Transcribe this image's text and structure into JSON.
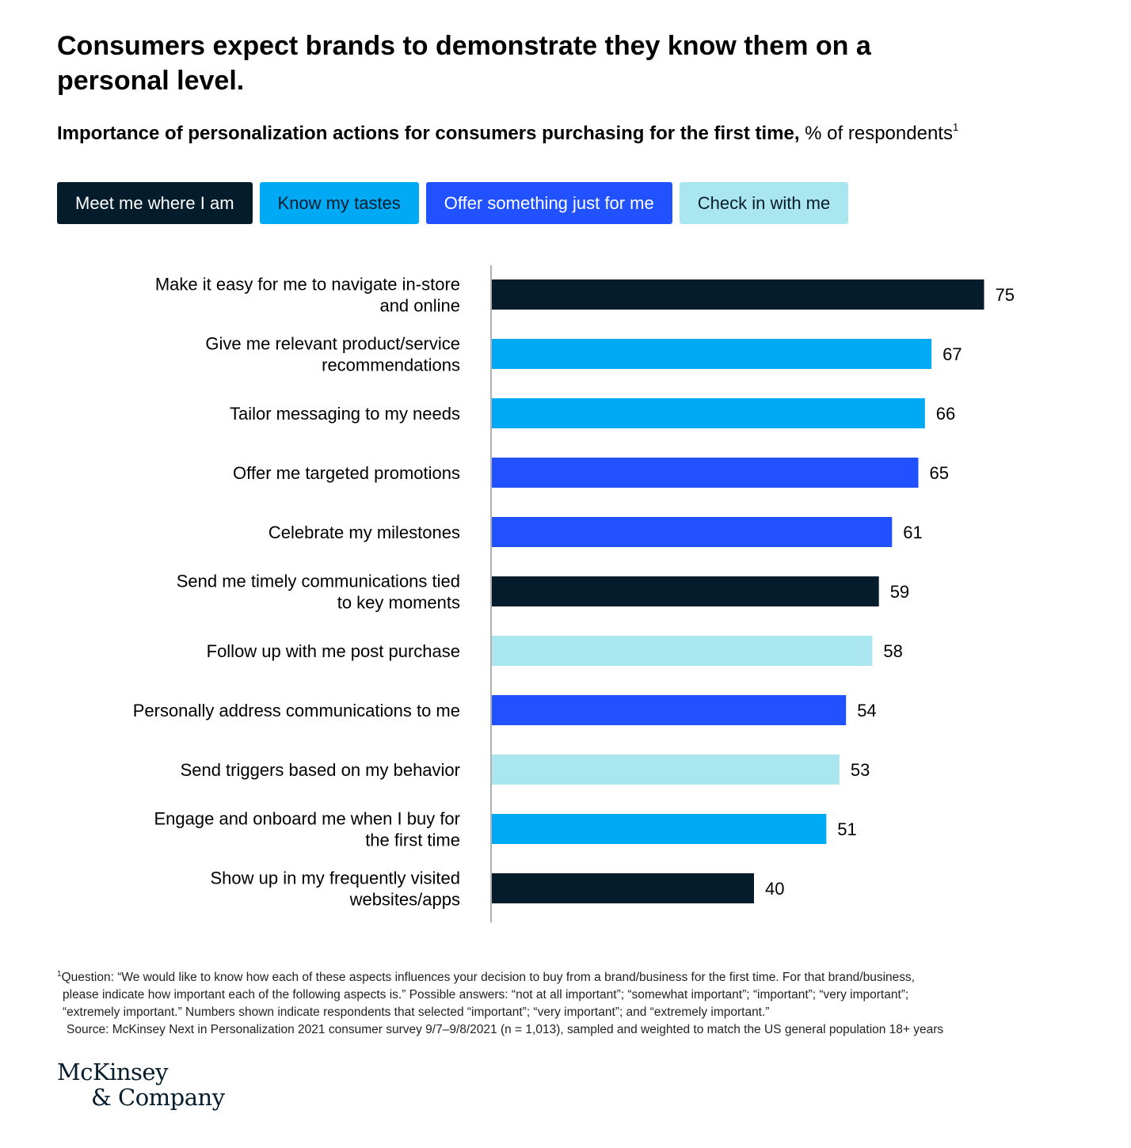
{
  "title": "Consumers expect brands to demonstrate they know them on a personal level.",
  "subtitle": {
    "bold": "Importance of personalization actions for consumers purchasing for the first time,",
    "unit": "% of respondents",
    "footnote_mark": "1"
  },
  "legend": [
    {
      "label": "Meet me where I am",
      "color": "#051c2c",
      "text_color": "#ffffff"
    },
    {
      "label": "Know my tastes",
      "color": "#00a9f4",
      "text_color": "#051c2c"
    },
    {
      "label": "Offer something just for me",
      "color": "#2251ff",
      "text_color": "#ffffff"
    },
    {
      "label": "Check in with me",
      "color": "#aae6f0",
      "text_color": "#051c2c"
    }
  ],
  "chart_data": {
    "type": "bar",
    "orientation": "horizontal",
    "unit": "% of respondents",
    "xlim": [
      0,
      100
    ],
    "grid": false,
    "categories": [
      "Make it easy for me to navigate in-store and online",
      "Give me relevant product/service recommendations",
      "Tailor messaging to my needs",
      "Offer me targeted promotions",
      "Celebrate my milestones",
      "Send me timely communications tied to key moments",
      "Follow up with me post purchase",
      "Personally address communications to me",
      "Send triggers based on my behavior",
      "Engage and onboard me when I buy for the first time",
      "Show up in my frequently visited websites/apps"
    ],
    "category_lines": [
      [
        "Make it easy for me to navigate in-store",
        "and online"
      ],
      [
        "Give me relevant product/service",
        "recommendations"
      ],
      [
        "Tailor messaging to my needs"
      ],
      [
        "Offer me targeted promotions"
      ],
      [
        "Celebrate my milestones"
      ],
      [
        "Send me timely communications tied",
        "to key moments"
      ],
      [
        "Follow up with me post purchase"
      ],
      [
        "Personally address communications to me"
      ],
      [
        "Send triggers based on my behavior"
      ],
      [
        "Engage and onboard me when I buy for",
        "the first time"
      ],
      [
        "Show up in my frequently visited",
        "websites/apps"
      ]
    ],
    "values": [
      75,
      67,
      66,
      65,
      61,
      59,
      58,
      54,
      53,
      51,
      40
    ],
    "groups": [
      "Meet me where I am",
      "Know my tastes",
      "Know my tastes",
      "Offer something just for me",
      "Offer something just for me",
      "Meet me where I am",
      "Check in with me",
      "Offer something just for me",
      "Check in with me",
      "Know my tastes",
      "Meet me where I am"
    ]
  },
  "footnote": {
    "mark": "1",
    "lines": [
      "Question: “We would like to know how each of these aspects influences your decision to buy from a brand/business for the first time. For that brand/business,",
      "please indicate how important each of the following aspects is.” Possible answers: “not at all important”; “somewhat important”; “important”; “very important”;",
      "“extremely important.” Numbers shown indicate respondents that selected “important”; “very important”; and “extremely important.”"
    ],
    "source": "Source: McKinsey Next in Personalization 2021 consumer survey 9/7–9/8/2021 (n = 1,013), sampled and weighted to match the US general population 18+ years"
  },
  "logo": {
    "line1": "McKinsey",
    "line2": "& Company"
  }
}
